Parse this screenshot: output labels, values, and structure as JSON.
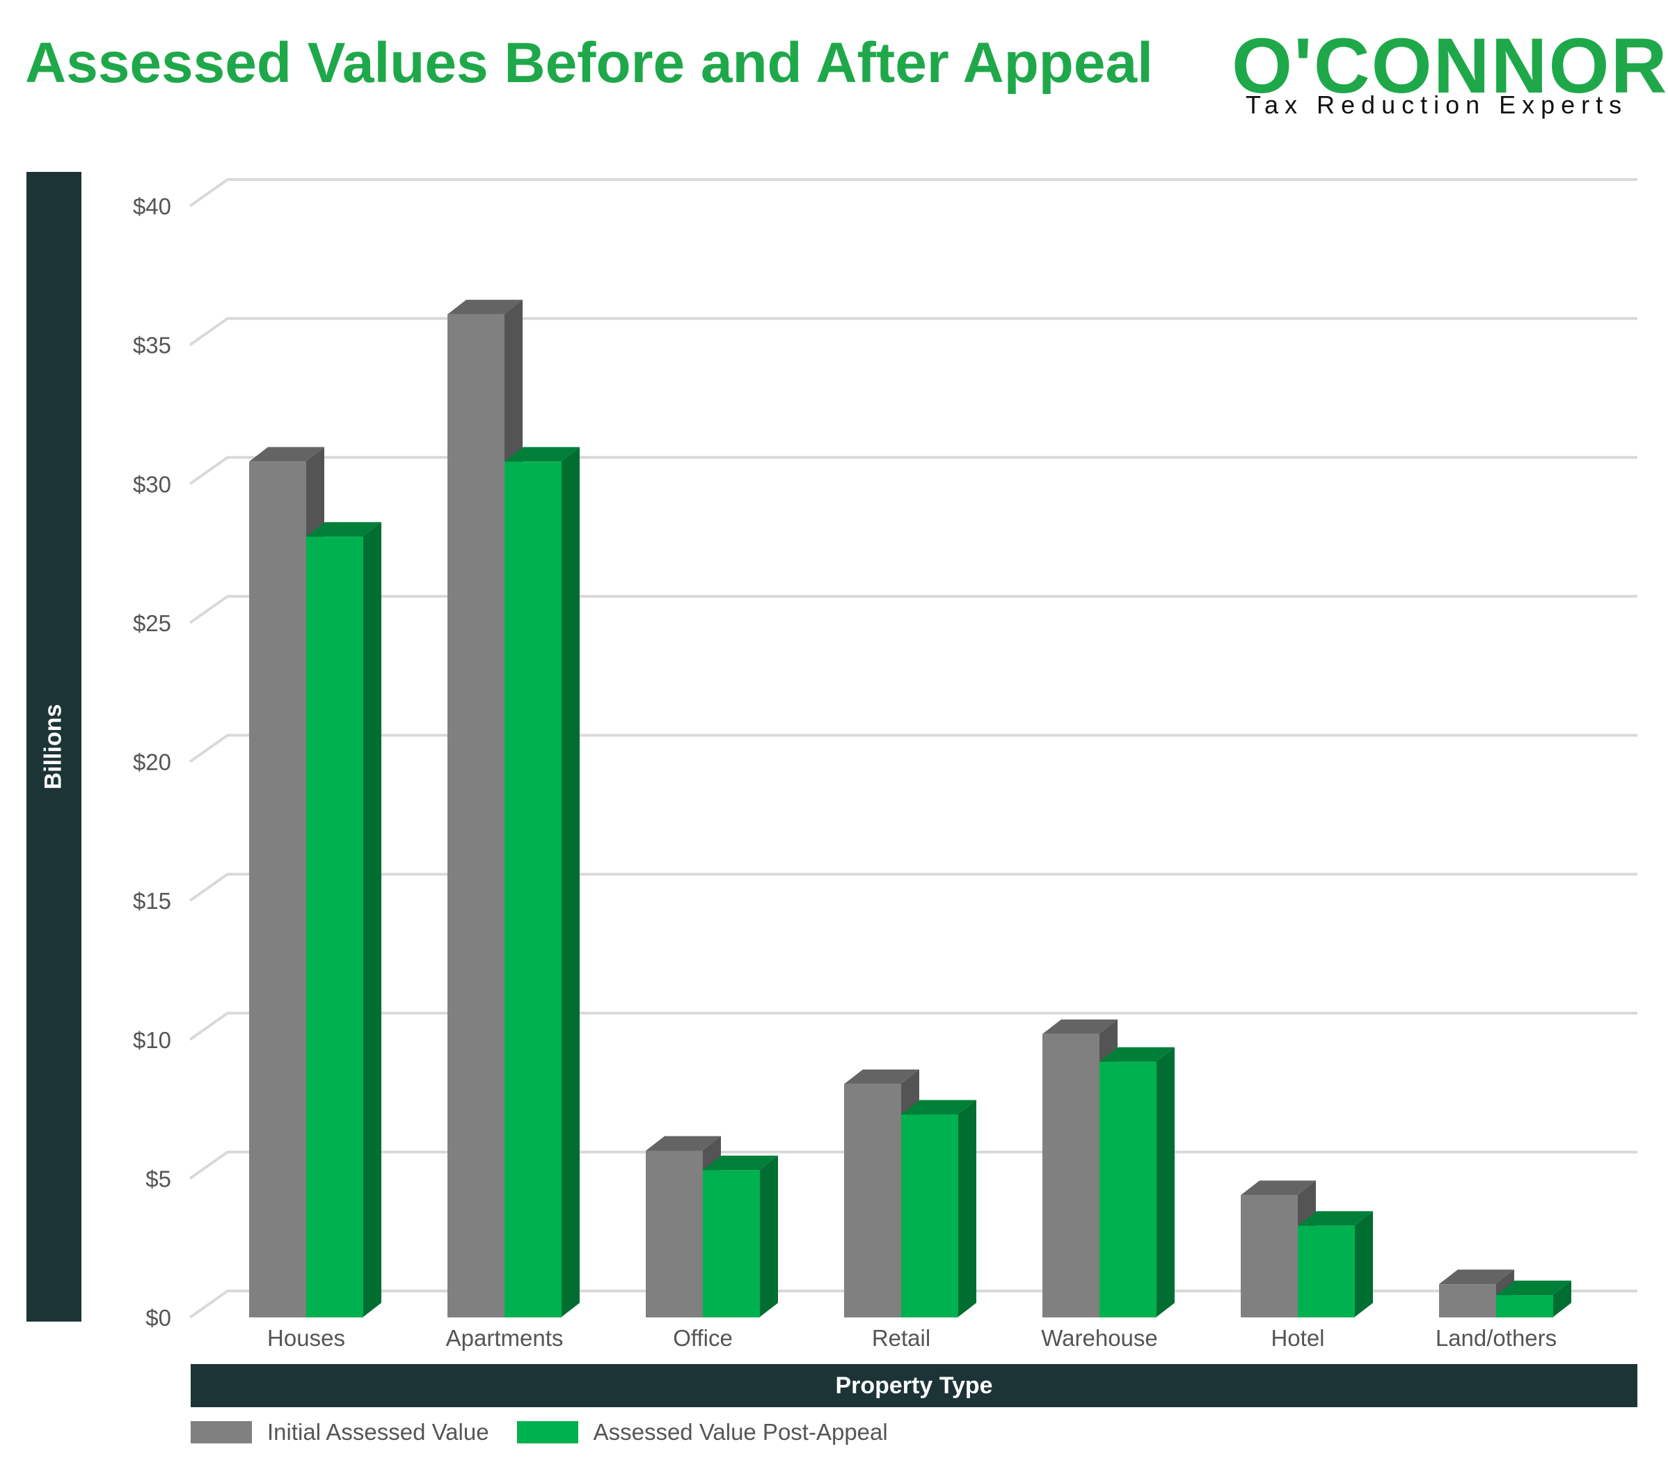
{
  "title": "Assessed Values Before and After Appeal",
  "logo": {
    "wordmark": "O'CONNOR",
    "tagline": "Tax Reduction Experts"
  },
  "colors": {
    "brand_green": "#1fa84a",
    "panel_dark": "#1d3436",
    "series_initial": "#808080",
    "series_post": "#00b14f",
    "gridline": "#d9d9d9"
  },
  "chart_data": {
    "type": "bar",
    "title": "Assessed Values Before and After Appeal",
    "xlabel": "Property Type",
    "ylabel": "Billions",
    "categories": [
      "Houses",
      "Apartments",
      "Office",
      "Retail",
      "Warehouse",
      "Hotel",
      "Land/others"
    ],
    "series": [
      {
        "name": "Initial Assessed Value",
        "color": "#808080",
        "values": [
          30.8,
          36.1,
          6.0,
          8.4,
          10.2,
          4.4,
          1.2
        ]
      },
      {
        "name": "Assessed Value Post-Appeal",
        "color": "#00b14f",
        "values": [
          28.1,
          30.8,
          5.3,
          7.3,
          9.2,
          3.3,
          0.8
        ]
      }
    ],
    "ylim": [
      0,
      40
    ],
    "yticks": [
      "$0",
      "$5",
      "$10",
      "$15",
      "$20",
      "$25",
      "$30",
      "$35",
      "$40"
    ],
    "grid": true,
    "style": "3d",
    "legend_position": "bottom"
  }
}
